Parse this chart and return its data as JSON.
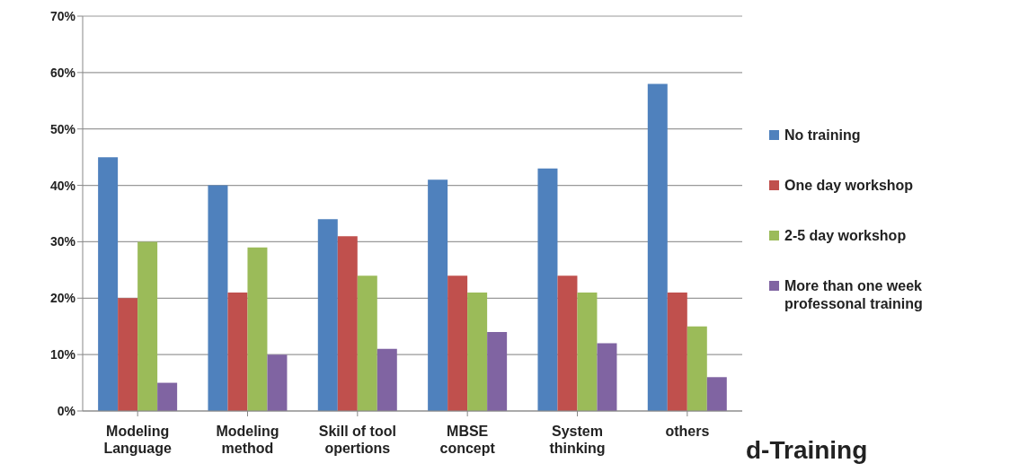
{
  "chart_data": {
    "type": "bar",
    "title": "d-Training",
    "categories": [
      "Modeling Language",
      "Modeling method",
      "Skill of tool opertions",
      "MBSE concept",
      "System thinking",
      "others"
    ],
    "series": [
      {
        "name": "No training",
        "color": "#4f81bd",
        "values": [
          0.45,
          0.4,
          0.34,
          0.41,
          0.43,
          0.58
        ]
      },
      {
        "name": "One day workshop",
        "color": "#c0504d",
        "values": [
          0.2,
          0.21,
          0.31,
          0.24,
          0.24,
          0.21
        ]
      },
      {
        "name": "2-5 day workshop",
        "color": "#9bbb59",
        "values": [
          0.3,
          0.29,
          0.24,
          0.21,
          0.21,
          0.15
        ]
      },
      {
        "name": "More than one week professonal training",
        "color": "#8064a2",
        "values": [
          0.05,
          0.1,
          0.11,
          0.14,
          0.12,
          0.06
        ]
      }
    ],
    "ylim": [
      0,
      0.7
    ],
    "yticks": [
      {
        "value": 0,
        "label": "0%"
      },
      {
        "value": 0.1,
        "label": "10%"
      },
      {
        "value": 0.2,
        "label": "20%"
      },
      {
        "value": 0.3,
        "label": "30%"
      },
      {
        "value": 0.4,
        "label": "40%"
      },
      {
        "value": 0.5,
        "label": "50%"
      },
      {
        "value": 0.6,
        "label": "60%"
      },
      {
        "value": 0.7,
        "label": "70%"
      }
    ],
    "grid": "y",
    "legend": "right"
  }
}
